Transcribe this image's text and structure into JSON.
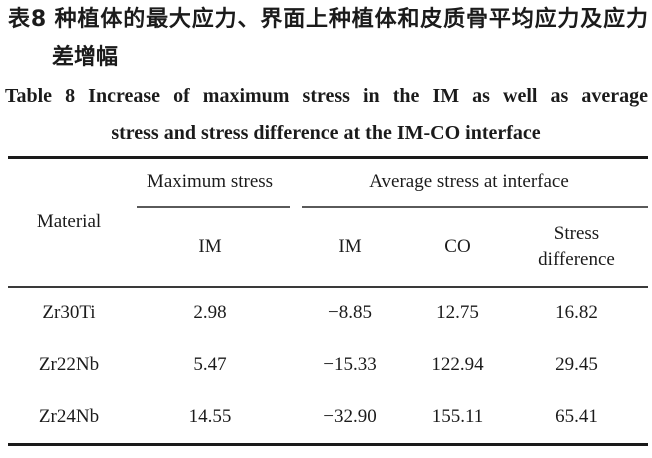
{
  "caption_zh": {
    "line1": "表8 种植体的最大应力、界面上种植体和皮质骨平均应力及应力",
    "line2": "差增幅"
  },
  "caption_en": {
    "line1": "Table 8  Increase of maximum stress in the IM as well as average",
    "line2": "stress and stress difference at the IM-CO interface"
  },
  "table": {
    "headers": {
      "material": "Material",
      "maximum_stress_group": "Maximum stress",
      "average_stress_group": "Average stress at interface",
      "sub_max_im": "IM",
      "sub_avg_im": "IM",
      "sub_avg_co": "CO",
      "sub_diff_line1": "Stress",
      "sub_diff_line2": "difference"
    },
    "rows": [
      {
        "material": "Zr30Ti",
        "max_im": "2.98",
        "avg_im": "−8.85",
        "avg_co": "12.75",
        "stress_diff": "16.82"
      },
      {
        "material": "Zr22Nb",
        "max_im": "5.47",
        "avg_im": "−15.33",
        "avg_co": "122.94",
        "stress_diff": "29.45"
      },
      {
        "material": "Zr24Nb",
        "max_im": "14.55",
        "avg_im": "−32.90",
        "avg_co": "155.11",
        "stress_diff": "65.41"
      }
    ]
  },
  "colors": {
    "text": "#1b1b1b",
    "rule_heavy": "#1a1a1a",
    "rule_light": "#5a5a5a",
    "background": "#ffffff"
  }
}
